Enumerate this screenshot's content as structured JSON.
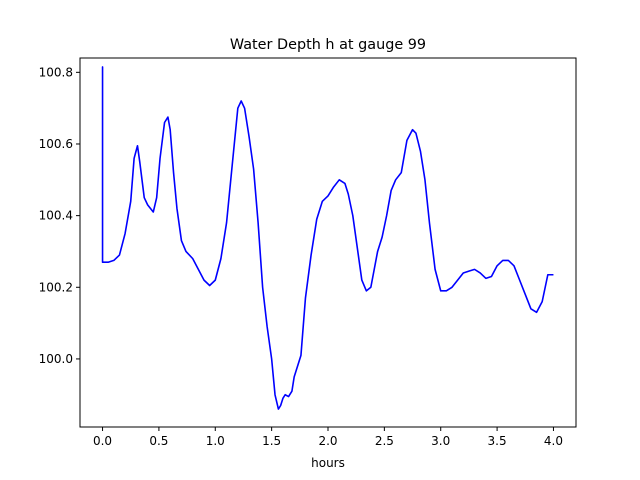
{
  "chart_data": {
    "type": "line",
    "title": "Water Depth h at gauge 99",
    "xlabel": "hours",
    "ylabel": "",
    "xlim": [
      -0.2,
      4.2
    ],
    "ylim": [
      99.81,
      100.84
    ],
    "xticks": [
      0.0,
      0.5,
      1.0,
      1.5,
      2.0,
      2.5,
      3.0,
      3.5,
      4.0
    ],
    "xtick_labels": [
      "0.0",
      "0.5",
      "1.0",
      "1.5",
      "2.0",
      "2.5",
      "3.0",
      "3.5",
      "4.0"
    ],
    "yticks": [
      100.0,
      100.2,
      100.4,
      100.6,
      100.8
    ],
    "ytick_labels": [
      "100.0",
      "100.2",
      "100.4",
      "100.6",
      "100.8"
    ],
    "grid": false,
    "series": [
      {
        "color": "#0000ff",
        "x": [
          0.0,
          0.0,
          0.0,
          0.05,
          0.1,
          0.15,
          0.2,
          0.25,
          0.28,
          0.31,
          0.33,
          0.37,
          0.4,
          0.45,
          0.48,
          0.51,
          0.55,
          0.58,
          0.6,
          0.63,
          0.66,
          0.7,
          0.74,
          0.8,
          0.85,
          0.9,
          0.95,
          1.0,
          1.05,
          1.1,
          1.15,
          1.2,
          1.23,
          1.26,
          1.3,
          1.34,
          1.38,
          1.42,
          1.46,
          1.5,
          1.53,
          1.56,
          1.58,
          1.6,
          1.62,
          1.65,
          1.68,
          1.7,
          1.73,
          1.76,
          1.8,
          1.85,
          1.9,
          1.95,
          2.0,
          2.05,
          2.1,
          2.15,
          2.18,
          2.22,
          2.26,
          2.3,
          2.34,
          2.38,
          2.41,
          2.44,
          2.48,
          2.52,
          2.56,
          2.6,
          2.65,
          2.7,
          2.75,
          2.78,
          2.82,
          2.86,
          2.9,
          2.95,
          3.0,
          3.05,
          3.1,
          3.15,
          3.2,
          3.25,
          3.3,
          3.35,
          3.4,
          3.45,
          3.5,
          3.55,
          3.6,
          3.65,
          3.7,
          3.75,
          3.8,
          3.85,
          3.9,
          3.95,
          4.0
        ],
        "y": [
          100.27,
          100.815,
          100.27,
          100.27,
          100.275,
          100.29,
          100.35,
          100.44,
          100.56,
          100.595,
          100.55,
          100.45,
          100.43,
          100.41,
          100.45,
          100.56,
          100.66,
          100.675,
          100.64,
          100.52,
          100.42,
          100.33,
          100.3,
          100.28,
          100.25,
          100.22,
          100.205,
          100.22,
          100.28,
          100.38,
          100.54,
          100.7,
          100.72,
          100.7,
          100.62,
          100.53,
          100.38,
          100.2,
          100.09,
          100.0,
          99.9,
          99.86,
          99.87,
          99.89,
          99.9,
          99.895,
          99.91,
          99.95,
          99.98,
          100.01,
          100.17,
          100.29,
          100.39,
          100.44,
          100.455,
          100.48,
          100.5,
          100.49,
          100.46,
          100.4,
          100.31,
          100.22,
          100.19,
          100.2,
          100.25,
          100.3,
          100.34,
          100.4,
          100.47,
          100.5,
          100.52,
          100.61,
          100.64,
          100.63,
          100.58,
          100.5,
          100.38,
          100.25,
          100.19,
          100.19,
          100.2,
          100.22,
          100.24,
          100.245,
          100.25,
          100.24,
          100.225,
          100.23,
          100.26,
          100.275,
          100.275,
          100.26,
          100.22,
          100.18,
          100.14,
          100.13,
          100.16,
          100.235,
          100.235
        ]
      }
    ]
  }
}
